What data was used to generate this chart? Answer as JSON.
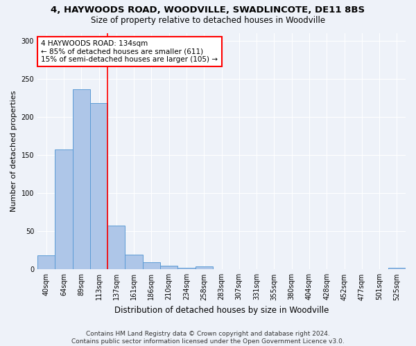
{
  "title1": "4, HAYWOODS ROAD, WOODVILLE, SWADLINCOTE, DE11 8BS",
  "title2": "Size of property relative to detached houses in Woodville",
  "xlabel": "Distribution of detached houses by size in Woodville",
  "ylabel": "Number of detached properties",
  "categories": [
    "40sqm",
    "64sqm",
    "89sqm",
    "113sqm",
    "137sqm",
    "161sqm",
    "186sqm",
    "210sqm",
    "234sqm",
    "258sqm",
    "283sqm",
    "307sqm",
    "331sqm",
    "355sqm",
    "380sqm",
    "404sqm",
    "428sqm",
    "452sqm",
    "477sqm",
    "501sqm",
    "525sqm"
  ],
  "values": [
    18,
    157,
    236,
    218,
    57,
    19,
    9,
    5,
    2,
    4,
    0,
    0,
    0,
    0,
    0,
    0,
    0,
    0,
    0,
    0,
    2
  ],
  "bar_color": "#aec6e8",
  "bar_edge_color": "#5b9bd5",
  "vline_color": "red",
  "annotation_text": "4 HAYWOODS ROAD: 134sqm\n← 85% of detached houses are smaller (611)\n15% of semi-detached houses are larger (105) →",
  "annotation_box_color": "white",
  "annotation_box_edge_color": "red",
  "ylim": [
    0,
    310
  ],
  "yticks": [
    0,
    50,
    100,
    150,
    200,
    250,
    300
  ],
  "footer_text": "Contains HM Land Registry data © Crown copyright and database right 2024.\nContains public sector information licensed under the Open Government Licence v3.0.",
  "bg_color": "#eef2f9",
  "grid_color": "white",
  "title1_fontsize": 9.5,
  "title2_fontsize": 8.5,
  "ylabel_fontsize": 8,
  "xlabel_fontsize": 8.5,
  "tick_fontsize": 7,
  "annotation_fontsize": 7.5,
  "footer_fontsize": 6.5
}
